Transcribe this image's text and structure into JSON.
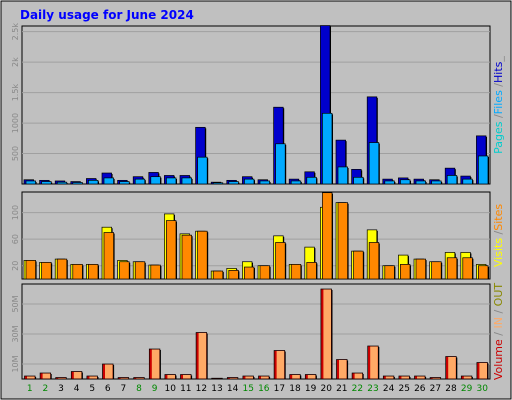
{
  "chart_data": {
    "type": "bar",
    "title": "Daily usage for June 2024",
    "colors": {
      "background": "#c0c0c0",
      "title": "#0000ff",
      "pages": "#00cccc",
      "files": "#00aaff",
      "hits": "#0000cc",
      "visits": "#ffff00",
      "sites": "#ff8800",
      "volume": "#cc0000",
      "in": "#ffaa66",
      "out": "#888800",
      "weekend": "#008800",
      "weekday": "#000000"
    },
    "categories": [
      "1",
      "2",
      "3",
      "4",
      "5",
      "6",
      "7",
      "8",
      "9",
      "10",
      "11",
      "12",
      "13",
      "14",
      "15",
      "16",
      "17",
      "18",
      "19",
      "20",
      "21",
      "22",
      "23",
      "24",
      "25",
      "26",
      "27",
      "28",
      "29",
      "30"
    ],
    "weekend": [
      "1",
      "2",
      "8",
      "9",
      "15",
      "16",
      "22",
      "23",
      "29",
      "30"
    ],
    "panels": [
      {
        "id": "hits",
        "legend": [
          {
            "text": "Pages",
            "color": "#00cccc"
          },
          {
            "text": " /",
            "color": "#888888"
          },
          {
            "text": "Files",
            "color": "#00aaff"
          },
          {
            "text": " /",
            "color": "#888888"
          },
          {
            "text": "Hits",
            "color": "#0000cc"
          },
          {
            "text": "_",
            "color": "#888888"
          }
        ],
        "ylim": [
          0,
          2560
        ],
        "ticks": [
          {
            "value": 500,
            "label": "500"
          },
          {
            "value": 1000,
            "label": "1000"
          },
          {
            "value": 1500,
            "label": "1.5k"
          },
          {
            "value": 2000,
            "label": "2k"
          },
          {
            "value": 2500,
            "label": "2.5k"
          }
        ],
        "series": [
          {
            "key": "hits",
            "color": "#0000cc",
            "values": [
              70,
              60,
              50,
              40,
              90,
              180,
              60,
              120,
              190,
              140,
              140,
              930,
              30,
              60,
              120,
              70,
              1260,
              80,
              200,
              2600,
              720,
              240,
              1430,
              80,
              100,
              80,
              70,
              260,
              130,
              790
            ]
          },
          {
            "key": "files",
            "color": "#00aaff",
            "values": [
              50,
              40,
              30,
              25,
              60,
              100,
              40,
              80,
              120,
              100,
              100,
              440,
              20,
              40,
              80,
              50,
              660,
              50,
              110,
              1160,
              280,
              110,
              680,
              50,
              70,
              50,
              50,
              140,
              80,
              460
            ]
          }
        ]
      },
      {
        "id": "visits",
        "legend": [
          {
            "text": "Visits",
            "color": "#ffff00"
          },
          {
            "text": " /",
            "color": "#888888"
          },
          {
            "text": "Sites",
            "color": "#ff8800"
          }
        ],
        "ylim": [
          0,
          128
        ],
        "ticks": [
          {
            "value": 20,
            "label": "20"
          },
          {
            "value": 60,
            "label": "60"
          },
          {
            "value": 100,
            "label": "100"
          }
        ],
        "series": [
          {
            "key": "visits",
            "color": "#ffff00",
            "values": [
              28,
              25,
              30,
              22,
              22,
              78,
              28,
              26,
              21,
              98,
              68,
              72,
              12,
              16,
              26,
              20,
              65,
              22,
              48,
              108,
              115,
              42,
              74,
              20,
              36,
              30,
              26,
              40,
              40,
              22
            ]
          },
          {
            "key": "sites",
            "color": "#ff8800",
            "values": [
              28,
              25,
              30,
              22,
              22,
              70,
              26,
              26,
              21,
              88,
              66,
              72,
              12,
              13,
              18,
              20,
              55,
              22,
              25,
              130,
              115,
              42,
              55,
              20,
              22,
              30,
              26,
              32,
              32,
              20
            ]
          }
        ]
      },
      {
        "id": "volume",
        "legend": [
          {
            "text": "Volume",
            "color": "#cc0000"
          },
          {
            "text": " / ",
            "color": "#888888"
          },
          {
            "text": "IN",
            "color": "#ffaa66"
          },
          {
            "text": " / ",
            "color": "#888888"
          },
          {
            "text": "OUT",
            "color": "#888800"
          }
        ],
        "ylim": [
          0,
          62
        ],
        "ticks": [
          {
            "value": 10,
            "label": "10M"
          },
          {
            "value": 30,
            "label": "30M"
          },
          {
            "value": 50,
            "label": "50M"
          }
        ],
        "series": [
          {
            "key": "volume",
            "color": "#cc0000",
            "values": [
              2,
              4,
              1,
              5,
              2,
              10,
              1,
              1,
              20,
              3,
              3,
              31,
              0,
              1,
              2,
              2,
              19,
              3,
              3,
              60,
              13,
              4,
              22,
              2,
              2,
              2,
              1,
              15,
              2,
              11
            ]
          }
        ]
      }
    ]
  }
}
